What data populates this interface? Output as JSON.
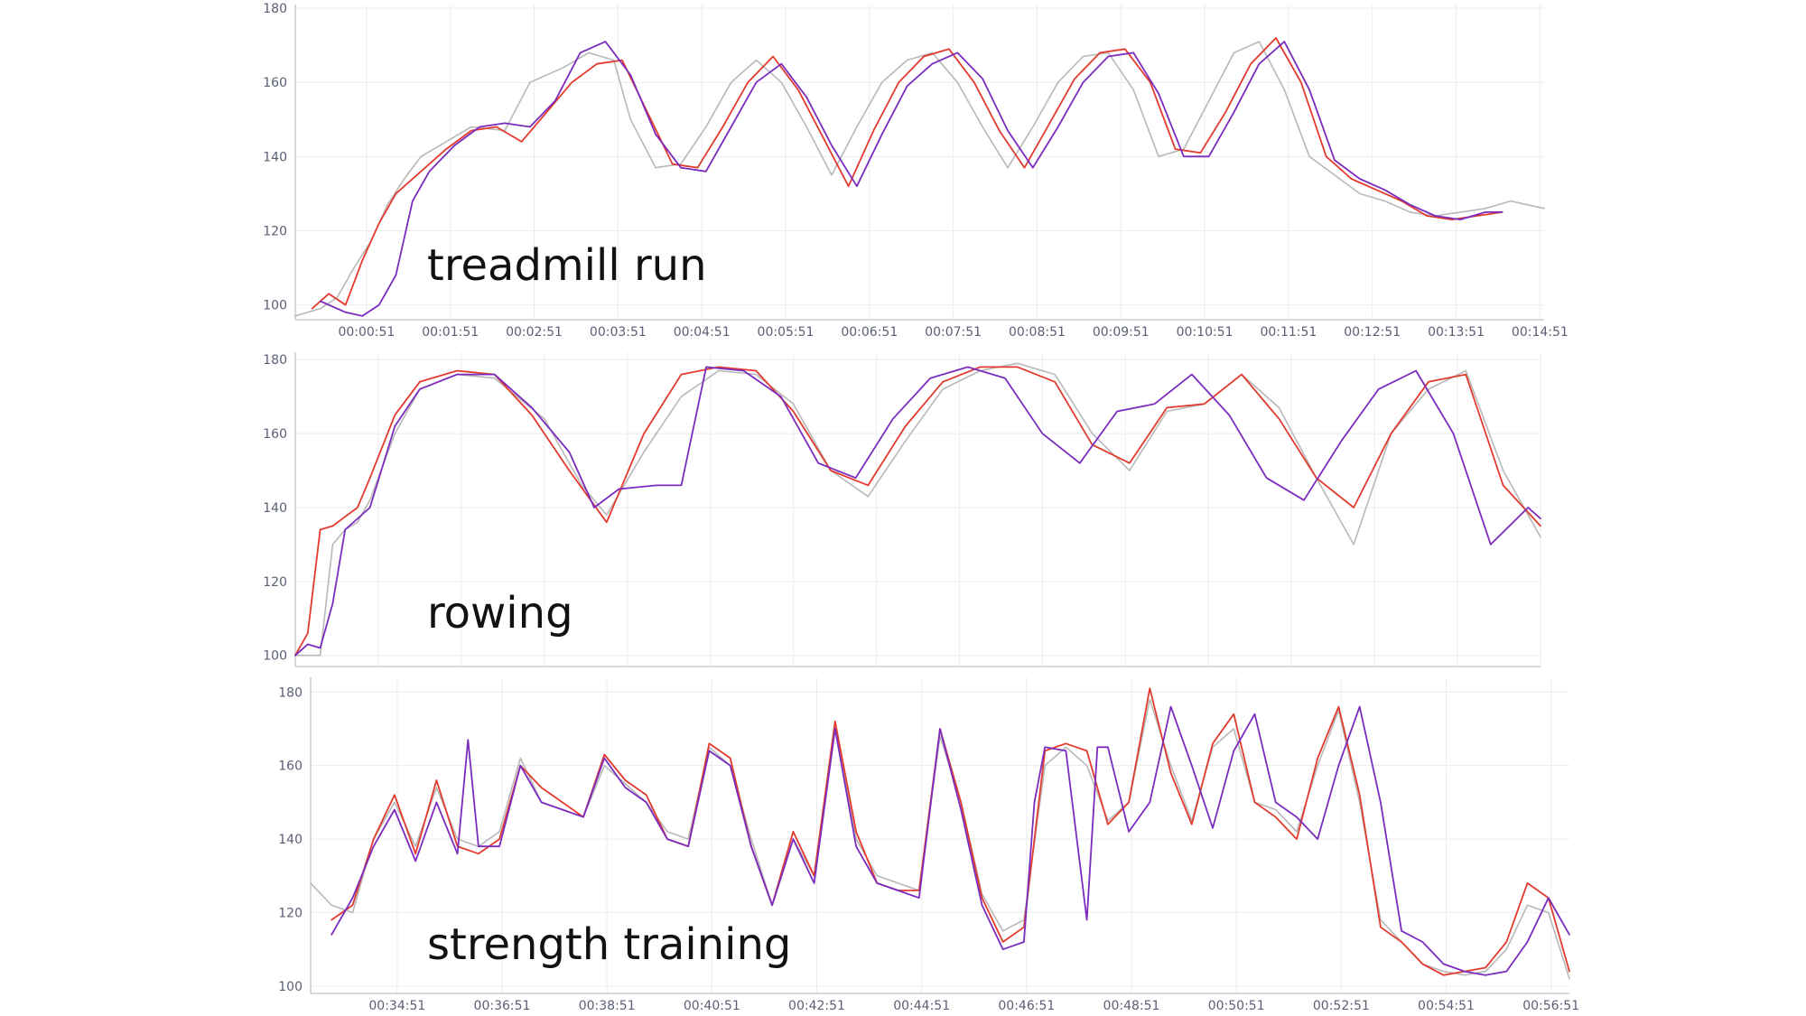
{
  "chart_data": [
    {
      "type": "line",
      "title": "",
      "label": "treadmill run",
      "xlabel": "",
      "ylabel": "",
      "ylim": [
        96,
        181
      ],
      "yticks": [
        100,
        120,
        140,
        160,
        180
      ],
      "xlim": [
        0,
        14.9
      ],
      "xtick_values": [
        0.85,
        1.85,
        2.85,
        3.85,
        4.85,
        5.85,
        6.85,
        7.85,
        8.85,
        9.85,
        10.85,
        11.85,
        12.85,
        13.85,
        14.85
      ],
      "xtick_labels": [
        "00:00:51",
        "00:01:51",
        "00:02:51",
        "00:03:51",
        "00:04:51",
        "00:05:51",
        "00:06:51",
        "00:07:51",
        "00:08:51",
        "00:09:51",
        "00:10:51",
        "00:11:51",
        "00:12:51",
        "00:13:51",
        "00:14:51"
      ],
      "grid": true,
      "legend": false,
      "series": [
        {
          "color": "#b8b8b8",
          "x": [
            0,
            0.3,
            0.5,
            0.7,
            0.9,
            1.1,
            1.3,
            1.5,
            1.8,
            2.1,
            2.5,
            2.8,
            3.2,
            3.5,
            3.8,
            4.0,
            4.3,
            4.6,
            4.9,
            5.2,
            5.5,
            5.8,
            6.1,
            6.4,
            6.7,
            7.0,
            7.3,
            7.6,
            7.9,
            8.2,
            8.5,
            8.8,
            9.1,
            9.4,
            9.7,
            10.0,
            10.3,
            10.6,
            10.9,
            11.2,
            11.5,
            11.8,
            12.1,
            12.4,
            12.7,
            13.0,
            13.3,
            13.6,
            13.9,
            14.2,
            14.5,
            14.9
          ],
          "y": [
            97,
            99,
            102,
            110,
            117,
            127,
            134,
            140,
            144,
            148,
            147,
            160,
            164,
            168,
            166,
            150,
            137,
            138,
            148,
            160,
            166,
            160,
            148,
            135,
            148,
            160,
            166,
            168,
            160,
            148,
            137,
            148,
            160,
            167,
            168,
            158,
            140,
            142,
            155,
            168,
            171,
            158,
            140,
            135,
            130,
            128,
            125,
            124,
            125,
            126,
            128,
            126
          ]
        },
        {
          "color": "#e23b2e",
          "x": [
            0.2,
            0.4,
            0.6,
            0.8,
            1.0,
            1.2,
            1.5,
            1.8,
            2.1,
            2.4,
            2.7,
            3.0,
            3.3,
            3.6,
            3.9,
            4.2,
            4.5,
            4.8,
            5.1,
            5.4,
            5.7,
            6.0,
            6.3,
            6.6,
            6.9,
            7.2,
            7.5,
            7.8,
            8.1,
            8.4,
            8.7,
            9.0,
            9.3,
            9.6,
            9.9,
            10.2,
            10.5,
            10.8,
            11.1,
            11.4,
            11.7,
            12.0,
            12.3,
            12.6,
            12.9,
            13.2,
            13.5,
            13.8,
            14.1,
            14.4
          ],
          "y": [
            99,
            103,
            100,
            112,
            122,
            130,
            136,
            142,
            147,
            148,
            144,
            152,
            160,
            165,
            166,
            152,
            138,
            137,
            148,
            160,
            167,
            158,
            145,
            132,
            147,
            160,
            167,
            169,
            160,
            147,
            137,
            149,
            161,
            168,
            169,
            160,
            142,
            141,
            152,
            165,
            172,
            160,
            140,
            134,
            131,
            128,
            124,
            123,
            124,
            125
          ]
        },
        {
          "color": "#7b2cbf",
          "x": [
            0.3,
            0.6,
            0.8,
            1.0,
            1.2,
            1.4,
            1.6,
            1.9,
            2.2,
            2.5,
            2.8,
            3.1,
            3.4,
            3.7,
            4.0,
            4.3,
            4.6,
            4.9,
            5.2,
            5.5,
            5.8,
            6.1,
            6.4,
            6.7,
            7.0,
            7.3,
            7.6,
            7.9,
            8.2,
            8.5,
            8.8,
            9.1,
            9.4,
            9.7,
            10.0,
            10.3,
            10.6,
            10.9,
            11.2,
            11.5,
            11.8,
            12.1,
            12.4,
            12.7,
            13.0,
            13.3,
            13.6,
            13.9,
            14.2,
            14.4
          ],
          "y": [
            101,
            98,
            97,
            100,
            108,
            128,
            136,
            143,
            148,
            149,
            148,
            155,
            168,
            171,
            162,
            146,
            137,
            136,
            148,
            160,
            165,
            156,
            143,
            132,
            146,
            159,
            165,
            168,
            161,
            147,
            137,
            148,
            160,
            167,
            168,
            157,
            140,
            140,
            152,
            165,
            171,
            158,
            139,
            134,
            131,
            127,
            124,
            123,
            125,
            125
          ]
        }
      ]
    },
    {
      "type": "line",
      "title": "",
      "label": "rowing",
      "xlabel": "",
      "ylabel": "",
      "ylim": [
        97,
        182
      ],
      "yticks": [
        100,
        120,
        140,
        160,
        180
      ],
      "xlim": [
        0,
        100
      ],
      "grid": true,
      "legend": false,
      "series": [
        {
          "color": "#b8b8b8",
          "x": [
            0,
            2,
            3,
            4,
            5,
            6,
            8,
            10,
            13,
            16,
            20,
            23,
            25,
            28,
            31,
            34,
            37,
            40,
            43,
            46,
            49,
            52,
            55,
            58,
            61,
            64,
            67,
            70,
            73,
            76,
            79,
            82,
            85,
            88,
            91,
            94,
            97,
            100
          ],
          "y": [
            100,
            100,
            130,
            134,
            136,
            142,
            160,
            172,
            176,
            175,
            164,
            146,
            138,
            155,
            170,
            177,
            176,
            168,
            150,
            143,
            158,
            172,
            177,
            179,
            176,
            160,
            150,
            166,
            168,
            176,
            167,
            148,
            130,
            160,
            172,
            177,
            150,
            132
          ]
        },
        {
          "color": "#e23b2e",
          "x": [
            0,
            1,
            2,
            3,
            5,
            6,
            8,
            10,
            13,
            16,
            19,
            22,
            25,
            28,
            31,
            34,
            37,
            40,
            43,
            46,
            49,
            52,
            55,
            58,
            61,
            64,
            67,
            70,
            73,
            76,
            79,
            82,
            85,
            88,
            91,
            94,
            97,
            100
          ],
          "y": [
            100,
            106,
            134,
            135,
            140,
            148,
            165,
            174,
            177,
            176,
            165,
            150,
            136,
            160,
            176,
            178,
            177,
            166,
            150,
            146,
            162,
            174,
            178,
            178,
            174,
            157,
            152,
            167,
            168,
            176,
            164,
            148,
            140,
            160,
            174,
            176,
            146,
            135
          ]
        },
        {
          "color": "#7b2cbf",
          "x": [
            0,
            1,
            2,
            3,
            4,
            6,
            8,
            10,
            13,
            16,
            19,
            22,
            24,
            26,
            29,
            31,
            33,
            36,
            39,
            42,
            45,
            48,
            51,
            54,
            57,
            60,
            63,
            66,
            69,
            72,
            75,
            78,
            81,
            84,
            87,
            90,
            93,
            96,
            99,
            100
          ],
          "y": [
            100,
            103,
            102,
            114,
            134,
            140,
            162,
            172,
            176,
            176,
            167,
            155,
            140,
            145,
            146,
            146,
            178,
            177,
            170,
            152,
            148,
            164,
            175,
            178,
            175,
            160,
            152,
            166,
            168,
            176,
            165,
            148,
            142,
            158,
            172,
            177,
            160,
            130,
            140,
            137
          ]
        }
      ]
    },
    {
      "type": "line",
      "title": "",
      "label": "strength training",
      "xlabel": "",
      "ylabel": "",
      "ylim": [
        98,
        184
      ],
      "yticks": [
        100,
        120,
        140,
        160,
        180
      ],
      "xlim": [
        33.2,
        57.2
      ],
      "xtick_values": [
        34.85,
        36.85,
        38.85,
        40.85,
        42.85,
        44.85,
        46.85,
        48.85,
        50.85,
        52.85,
        54.85,
        56.85
      ],
      "xtick_labels": [
        "00:34:51",
        "00:36:51",
        "00:38:51",
        "00:40:51",
        "00:42:51",
        "00:44:51",
        "00:46:51",
        "00:48:51",
        "00:50:51",
        "00:52:51",
        "00:54:51",
        "00:56:51"
      ],
      "grid": true,
      "legend": false,
      "series": [
        {
          "color": "#b8b8b8",
          "x": [
            33.2,
            33.6,
            34.0,
            34.4,
            34.8,
            35.2,
            35.6,
            36.0,
            36.4,
            36.8,
            37.2,
            37.6,
            38.0,
            38.4,
            38.8,
            39.2,
            39.6,
            40.0,
            40.4,
            40.8,
            41.2,
            41.6,
            42.0,
            42.4,
            42.8,
            43.2,
            43.6,
            44.0,
            44.4,
            44.8,
            45.2,
            45.6,
            46.0,
            46.4,
            46.8,
            47.2,
            47.6,
            48.0,
            48.4,
            48.8,
            49.2,
            49.6,
            50.0,
            50.4,
            50.8,
            51.2,
            51.6,
            52.0,
            52.4,
            52.8,
            53.2,
            53.6,
            54.0,
            54.4,
            54.8,
            55.2,
            55.6,
            56.0,
            56.4,
            56.8,
            57.2
          ],
          "y": [
            128,
            122,
            120,
            140,
            150,
            138,
            154,
            140,
            138,
            142,
            162,
            150,
            148,
            146,
            160,
            155,
            150,
            142,
            140,
            165,
            160,
            140,
            122,
            140,
            130,
            170,
            140,
            130,
            128,
            126,
            168,
            150,
            125,
            115,
            118,
            160,
            165,
            160,
            145,
            150,
            178,
            160,
            145,
            165,
            170,
            150,
            148,
            142,
            160,
            175,
            150,
            118,
            112,
            106,
            104,
            103,
            104,
            110,
            122,
            120,
            102
          ]
        },
        {
          "color": "#e23b2e",
          "x": [
            33.6,
            34.0,
            34.4,
            34.8,
            35.2,
            35.6,
            36.0,
            36.4,
            36.8,
            37.2,
            37.6,
            38.0,
            38.4,
            38.8,
            39.2,
            39.6,
            40.0,
            40.4,
            40.8,
            41.2,
            41.6,
            42.0,
            42.4,
            42.8,
            43.2,
            43.6,
            44.0,
            44.4,
            44.8,
            45.2,
            45.6,
            46.0,
            46.4,
            46.8,
            47.2,
            47.6,
            48.0,
            48.4,
            48.8,
            49.2,
            49.6,
            50.0,
            50.4,
            50.8,
            51.2,
            51.6,
            52.0,
            52.4,
            52.8,
            53.2,
            53.6,
            54.0,
            54.4,
            54.8,
            55.2,
            55.6,
            56.0,
            56.4,
            56.8,
            57.2
          ],
          "y": [
            118,
            122,
            140,
            152,
            136,
            156,
            138,
            136,
            140,
            160,
            154,
            150,
            146,
            163,
            156,
            152,
            140,
            138,
            166,
            162,
            138,
            122,
            142,
            130,
            172,
            142,
            128,
            126,
            126,
            170,
            150,
            124,
            112,
            116,
            164,
            166,
            164,
            144,
            150,
            181,
            158,
            144,
            166,
            174,
            150,
            146,
            140,
            162,
            176,
            152,
            116,
            112,
            106,
            103,
            104,
            105,
            112,
            128,
            124,
            104
          ]
        },
        {
          "color": "#7b2cbf",
          "x": [
            33.6,
            34.0,
            34.4,
            34.8,
            35.2,
            35.6,
            36.0,
            36.2,
            36.4,
            36.8,
            37.2,
            37.6,
            38.0,
            38.4,
            38.8,
            39.2,
            39.6,
            40.0,
            40.4,
            40.8,
            41.2,
            41.6,
            42.0,
            42.4,
            42.8,
            43.2,
            43.6,
            44.0,
            44.4,
            44.8,
            45.2,
            45.6,
            46.0,
            46.4,
            46.8,
            47.0,
            47.2,
            47.6,
            48.0,
            48.2,
            48.4,
            48.8,
            49.2,
            49.6,
            50.0,
            50.4,
            50.8,
            51.2,
            51.6,
            52.0,
            52.4,
            52.8,
            53.2,
            53.6,
            54.0,
            54.4,
            54.8,
            55.2,
            55.6,
            56.0,
            56.4,
            56.8,
            57.2
          ],
          "y": [
            114,
            124,
            138,
            148,
            134,
            150,
            136,
            167,
            138,
            138,
            160,
            150,
            148,
            146,
            162,
            154,
            150,
            140,
            138,
            164,
            160,
            138,
            122,
            140,
            128,
            170,
            138,
            128,
            126,
            124,
            170,
            148,
            122,
            110,
            112,
            150,
            165,
            164,
            118,
            165,
            165,
            142,
            150,
            176,
            160,
            143,
            164,
            174,
            150,
            146,
            140,
            160,
            176,
            150,
            115,
            112,
            106,
            104,
            103,
            104,
            112,
            124,
            114
          ]
        }
      ]
    }
  ]
}
